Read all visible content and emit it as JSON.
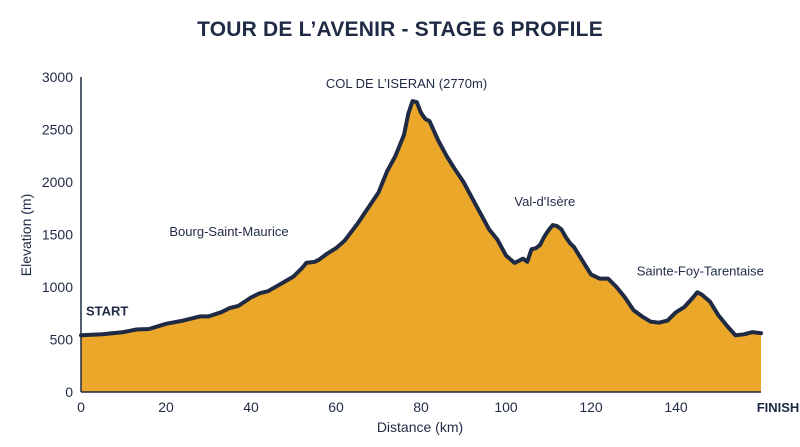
{
  "chart_data": {
    "type": "area",
    "title": "TOUR DE L’AVENIR - STAGE 6 PROFILE",
    "xlabel": "Distance (km)",
    "ylabel": "Elevation (m)",
    "xlim": [
      0,
      160
    ],
    "ylim": [
      0,
      3000
    ],
    "xticks": [
      0,
      20,
      40,
      60,
      80,
      100,
      120,
      140
    ],
    "yticks": [
      0,
      500,
      1000,
      1500,
      2000,
      2500,
      3000
    ],
    "grid": false,
    "colors": {
      "fill": "#EBA72A",
      "line": "#1F2A44",
      "text": "#1F2A44"
    },
    "x": [
      0,
      5,
      10,
      13,
      16,
      18,
      20,
      24,
      28,
      30,
      33,
      35,
      37,
      40,
      42,
      44,
      47,
      50,
      52,
      53,
      55,
      56,
      58,
      60,
      62,
      65,
      67,
      70,
      72,
      74,
      76,
      77,
      78,
      79,
      80,
      81,
      82,
      84,
      86,
      88,
      90,
      92,
      94,
      96,
      98,
      100,
      102,
      103,
      104,
      105,
      106,
      107,
      108,
      109,
      110,
      111,
      112,
      113,
      114,
      115,
      116,
      118,
      120,
      122,
      124,
      126,
      128,
      130,
      132,
      134,
      136,
      138,
      140,
      142,
      144,
      145,
      146,
      148,
      150,
      152,
      154,
      156,
      158,
      160
    ],
    "y": [
      540,
      550,
      570,
      595,
      600,
      625,
      650,
      680,
      720,
      720,
      760,
      800,
      820,
      900,
      940,
      960,
      1030,
      1100,
      1180,
      1230,
      1240,
      1260,
      1320,
      1370,
      1440,
      1600,
      1720,
      1900,
      2100,
      2250,
      2450,
      2650,
      2770,
      2760,
      2660,
      2600,
      2580,
      2400,
      2250,
      2120,
      2000,
      1850,
      1700,
      1550,
      1450,
      1300,
      1230,
      1250,
      1270,
      1240,
      1360,
      1370,
      1400,
      1480,
      1540,
      1590,
      1580,
      1550,
      1480,
      1420,
      1380,
      1250,
      1120,
      1080,
      1080,
      1000,
      900,
      780,
      720,
      670,
      660,
      680,
      760,
      810,
      900,
      950,
      930,
      860,
      730,
      630,
      540,
      550,
      570,
      560
    ],
    "annotations": [
      {
        "text": "START",
        "x": 0,
        "y": 540,
        "bold": true
      },
      {
        "text": "Bourg-Saint-Maurice",
        "x": 52,
        "y": 1230,
        "bold": false
      },
      {
        "text": "COL DE L’ISERAN (2770m)",
        "x": 78,
        "y": 2770,
        "bold": false
      },
      {
        "text": "Val-d'Isère",
        "x": 111,
        "y": 1590,
        "bold": false
      },
      {
        "text": "Sainte-Foy-Tarentaise",
        "x": 145,
        "y": 950,
        "bold": false
      },
      {
        "text": "FINISH",
        "x": 160,
        "y": 0,
        "bold": true
      }
    ]
  }
}
